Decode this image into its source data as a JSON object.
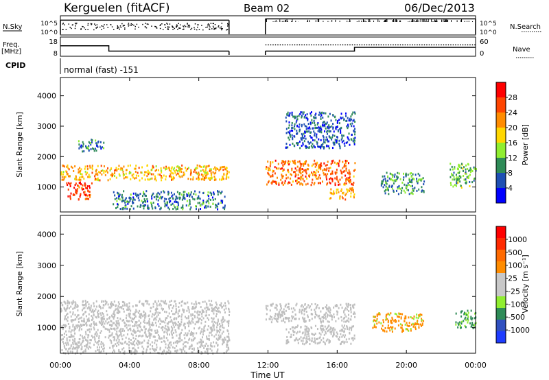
{
  "header": {
    "station": "Kerguelen (fitACF)",
    "beam": "Beam 02",
    "date": "06/Dec/2013",
    "cpid_label": "CPID",
    "cpid_value": "normal (fast) -151",
    "time_axis_label": "Time UT"
  },
  "time_ticks": [
    "00:00",
    "04:00",
    "08:00",
    "12:00",
    "16:00",
    "20:00",
    "00:00"
  ],
  "colors": {
    "power_scale": [
      "#0000ff",
      "#1e4fb4",
      "#2e8b57",
      "#90ee30",
      "#ffd700",
      "#ff8c00",
      "#ff4500",
      "#ff0000"
    ],
    "velocity_scale": [
      "#1e3cff",
      "#3050c0",
      "#2e8b57",
      "#90ee30",
      "#c8c8c8",
      "#c8c8c8",
      "#ff8c00",
      "#ff6a00",
      "#ff2a00",
      "#ff0000"
    ],
    "ground_scatter": "#bebebe"
  },
  "chart_data": [
    {
      "type": "line",
      "panel": "noise",
      "left_label": "N.Sky",
      "right_label": "N.Search",
      "yticks_left": [
        "10^5",
        "10^0"
      ],
      "yticks_right": [
        "10^5",
        "10^0"
      ],
      "xlim": [
        0,
        24
      ],
      "gap_hours": [
        9.75,
        11.85
      ],
      "series": [
        {
          "x": [
            0,
            9.75
          ],
          "y": [
            20000,
            20000
          ]
        },
        {
          "x": [
            11.85,
            24
          ],
          "y": [
            50000,
            50000
          ]
        }
      ]
    },
    {
      "type": "line",
      "panel": "frequency",
      "left_label": "Freq.",
      "left_units": "[MHz]",
      "right_label": "Nave",
      "yticks_left": [
        "18",
        "8"
      ],
      "yticks_right": [
        "60",
        "0"
      ],
      "xlim": [
        0,
        24
      ],
      "series": [
        {
          "x": [
            0,
            2.8,
            2.8,
            9.75
          ],
          "y": [
            14,
            14,
            10.5,
            10.5
          ]
        },
        {
          "x": [
            11.85,
            17.0,
            17.0,
            24
          ],
          "y": [
            10.5,
            10.5,
            13,
            13
          ]
        },
        {
          "x": [
            11.85,
            24
          ],
          "y": [
            40,
            40
          ]
        }
      ]
    },
    {
      "type": "heatmap",
      "panel": "power",
      "ylabel": "Slant Range [km]",
      "xlabel": "",
      "colorbar_label": "Power [dB]",
      "colorbar_ticks": [
        "28",
        "24",
        "20",
        "16",
        "12",
        "8",
        "4"
      ],
      "ylim": [
        180,
        4600
      ],
      "yticks": [
        1000,
        2000,
        3000,
        4000
      ],
      "xlim": [
        0,
        24
      ],
      "regions": [
        {
          "t": [
            0,
            9.75
          ],
          "r": [
            1250,
            1750
          ],
          "db": 20
        },
        {
          "t": [
            0.3,
            1.8
          ],
          "r": [
            600,
            1200
          ],
          "db": 28
        },
        {
          "t": [
            3.0,
            9.5
          ],
          "r": [
            300,
            900
          ],
          "db": 8
        },
        {
          "t": [
            1.0,
            2.5
          ],
          "r": [
            2200,
            2600
          ],
          "db": 8
        },
        {
          "t": [
            11.85,
            17.0
          ],
          "r": [
            1100,
            1900
          ],
          "db": 24
        },
        {
          "t": [
            13.0,
            17.0
          ],
          "r": [
            2300,
            3500
          ],
          "db": 6
        },
        {
          "t": [
            15.5,
            17.0
          ],
          "r": [
            600,
            1000
          ],
          "db": 20
        },
        {
          "t": [
            18.5,
            21.0
          ],
          "r": [
            800,
            1500
          ],
          "db": 10
        },
        {
          "t": [
            22.5,
            24.0
          ],
          "r": [
            1000,
            1800
          ],
          "db": 12
        }
      ]
    },
    {
      "type": "heatmap",
      "panel": "velocity",
      "ylabel": "Slant Range [km]",
      "xlabel": "Time UT",
      "colorbar_label": "Velocity [m s⁻¹]",
      "colorbar_ticks": [
        "1000",
        "500",
        "100",
        "25",
        "-25",
        "-100",
        "-500",
        "-1000"
      ],
      "ylim": [
        180,
        4600
      ],
      "yticks": [
        1000,
        2000,
        3000,
        4000
      ],
      "xlim": [
        0,
        24
      ],
      "regions": [
        {
          "t": [
            0,
            9.75
          ],
          "r": [
            200,
            1900
          ],
          "v": 0
        },
        {
          "t": [
            11.85,
            17.0
          ],
          "r": [
            1200,
            1800
          ],
          "v": 0
        },
        {
          "t": [
            13.0,
            17.0
          ],
          "r": [
            500,
            1100
          ],
          "v": 0
        },
        {
          "t": [
            18.0,
            21.0
          ],
          "r": [
            900,
            1500
          ],
          "v": -300
        },
        {
          "t": [
            22.8,
            24.0
          ],
          "r": [
            1000,
            1600
          ],
          "v": 150
        }
      ]
    }
  ]
}
